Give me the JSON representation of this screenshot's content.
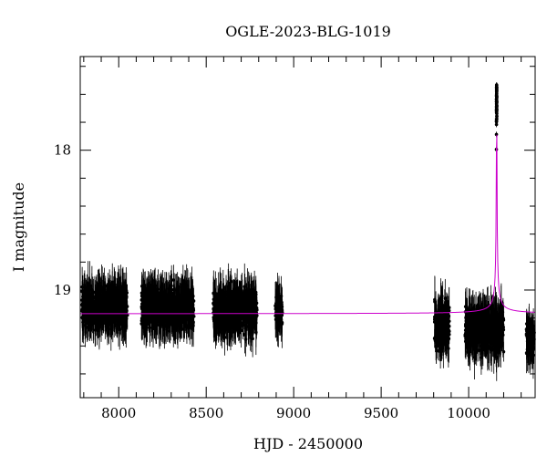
{
  "chart_data": {
    "type": "scatter",
    "title": "OGLE-2023-BLG-1019",
    "xlabel": "HJD - 2450000",
    "ylabel": "I magnitude",
    "xlim": [
      7780,
      10380
    ],
    "ylim": [
      19.77,
      17.33
    ],
    "y_inverted": true,
    "x_ticks": [
      8000,
      8500,
      9000,
      9500,
      10000
    ],
    "y_ticks": [
      18,
      19
    ],
    "grid": false,
    "legend": "none",
    "baseline_magnitude": 19.17,
    "peak": {
      "x": 10160,
      "y": 17.55
    },
    "model_color": "#cc00cc",
    "point_color": "#000000",
    "seasons": [
      {
        "x": [
          7790,
          8050
        ],
        "mean": 19.12,
        "spread": 0.22
      },
      {
        "x": [
          8130,
          8430
        ],
        "mean": 19.13,
        "spread": 0.22
      },
      {
        "x": [
          8540,
          8790
        ],
        "mean": 19.15,
        "spread": 0.22
      },
      {
        "x": [
          8895,
          8935
        ],
        "mean": 19.15,
        "spread": 0.18
      },
      {
        "x": [
          9805,
          9890
        ],
        "mean": 19.25,
        "spread": 0.26
      },
      {
        "x": [
          9980,
          10200
        ],
        "mean": 19.28,
        "spread": 0.25
      },
      {
        "x": [
          10330,
          10375
        ],
        "mean": 19.35,
        "spread": 0.18
      }
    ]
  }
}
